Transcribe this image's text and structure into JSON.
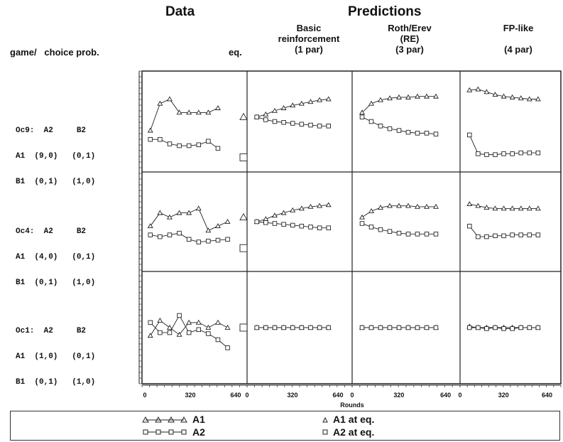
{
  "headers": {
    "data": "Data",
    "predictions": "Predictions",
    "game_choice": "game/   choice prob.",
    "eq": "eq.",
    "basic": [
      "Basic",
      "reinforcement",
      "(1 par)"
    ],
    "rotherev": [
      "Roth/Erev",
      "(RE)",
      "(3 par)"
    ],
    "fplike": [
      "FP-like",
      "",
      "(4 par)"
    ]
  },
  "games": [
    {
      "name_line": "Oc9:  A2     B2",
      "row1": "A1  (9,0)   (0,1)",
      "row2": "B1  (0,1)   (1,0)"
    },
    {
      "name_line": "Oc4:  A2     B2",
      "row1": "A1  (4,0)   (0,1)",
      "row2": "B1  (0,1)   (1,0)"
    },
    {
      "name_line": "Oc1:  A2     B2",
      "row1": "A1  (1,0)   (0,1)",
      "row2": "B1  (0,1)   (1,0)"
    }
  ],
  "legend": {
    "a1": "A1",
    "a2": "A2",
    "a1_eq": "A1 at eq.",
    "a2_eq": "A2 at eq."
  },
  "chart_data": {
    "type": "line",
    "xlabel": "Rounds",
    "xticks": [
      "0",
      "320",
      "640"
    ],
    "xlim": [
      0,
      700
    ],
    "ylim": [
      0,
      1
    ],
    "ylabel": "",
    "panel_columns": [
      "Data",
      "Basic reinforcement (1 par)",
      "Roth/Erev (RE) (3 par)",
      "FP-like (4 par)"
    ],
    "panel_rows": [
      "Oc9",
      "Oc4",
      "Oc1"
    ],
    "equilibrium": [
      {
        "game": "Oc9",
        "A1": 0.55,
        "A2": 0.1
      },
      {
        "game": "Oc4",
        "A1": 0.55,
        "A2": 0.2
      },
      {
        "game": "Oc1",
        "A1": 0.5,
        "A2": 0.5
      }
    ],
    "panels": [
      {
        "row": "Oc9",
        "col": "Data",
        "series": [
          {
            "name": "A1",
            "x": [
              40,
              110,
              180,
              250,
              320,
              390,
              460,
              530
            ],
            "values": [
              0.4,
              0.7,
              0.75,
              0.6,
              0.6,
              0.6,
              0.6,
              0.65
            ]
          },
          {
            "name": "A2",
            "x": [
              40,
              110,
              180,
              250,
              320,
              390,
              460,
              530
            ],
            "values": [
              0.3,
              0.3,
              0.25,
              0.23,
              0.23,
              0.24,
              0.28,
              0.2
            ]
          }
        ]
      },
      {
        "row": "Oc9",
        "col": "Basic reinforcement (1 par)",
        "series": [
          {
            "name": "A1",
            "x": [
              50,
              115,
              180,
              245,
              310,
              375,
              440,
              505,
              570
            ],
            "values": [
              0.55,
              0.58,
              0.62,
              0.65,
              0.68,
              0.7,
              0.72,
              0.74,
              0.75
            ]
          },
          {
            "name": "A2",
            "x": [
              50,
              115,
              180,
              245,
              310,
              375,
              440,
              505,
              570
            ],
            "values": [
              0.55,
              0.52,
              0.5,
              0.49,
              0.48,
              0.47,
              0.46,
              0.45,
              0.45
            ]
          }
        ]
      },
      {
        "row": "Oc9",
        "col": "Roth/Erev (RE) (3 par)",
        "series": [
          {
            "name": "A1",
            "x": [
              50,
              115,
              180,
              245,
              310,
              375,
              440,
              505,
              570
            ],
            "values": [
              0.6,
              0.7,
              0.74,
              0.76,
              0.77,
              0.77,
              0.78,
              0.78,
              0.78
            ]
          },
          {
            "name": "A2",
            "x": [
              50,
              115,
              180,
              245,
              310,
              375,
              440,
              505,
              570
            ],
            "values": [
              0.55,
              0.5,
              0.45,
              0.42,
              0.4,
              0.38,
              0.37,
              0.37,
              0.36
            ]
          }
        ]
      },
      {
        "row": "Oc9",
        "col": "FP-like (4 par)",
        "series": [
          {
            "name": "A1",
            "x": [
              50,
              115,
              180,
              245,
              310,
              375,
              440,
              505,
              570
            ],
            "values": [
              0.85,
              0.86,
              0.83,
              0.8,
              0.78,
              0.77,
              0.76,
              0.75,
              0.75
            ]
          },
          {
            "name": "A2",
            "x": [
              50,
              115,
              180,
              245,
              310,
              375,
              440,
              505,
              570
            ],
            "values": [
              0.35,
              0.14,
              0.13,
              0.13,
              0.14,
              0.14,
              0.15,
              0.15,
              0.15
            ]
          }
        ]
      },
      {
        "row": "Oc4",
        "col": "Data",
        "series": [
          {
            "name": "A1",
            "x": [
              40,
              110,
              180,
              250,
              320,
              390,
              460,
              530,
              600
            ],
            "values": [
              0.45,
              0.6,
              0.55,
              0.6,
              0.6,
              0.65,
              0.4,
              0.45,
              0.5
            ]
          },
          {
            "name": "A2",
            "x": [
              40,
              110,
              180,
              250,
              320,
              390,
              460,
              530,
              600
            ],
            "values": [
              0.35,
              0.33,
              0.35,
              0.37,
              0.3,
              0.27,
              0.28,
              0.29,
              0.3
            ]
          }
        ]
      },
      {
        "row": "Oc4",
        "col": "Basic reinforcement (1 par)",
        "series": [
          {
            "name": "A1",
            "x": [
              50,
              115,
              180,
              245,
              310,
              375,
              440,
              505,
              570
            ],
            "values": [
              0.5,
              0.53,
              0.57,
              0.6,
              0.63,
              0.65,
              0.67,
              0.68,
              0.69
            ]
          },
          {
            "name": "A2",
            "x": [
              50,
              115,
              180,
              245,
              310,
              375,
              440,
              505,
              570
            ],
            "values": [
              0.5,
              0.49,
              0.48,
              0.47,
              0.46,
              0.45,
              0.44,
              0.43,
              0.43
            ]
          }
        ]
      },
      {
        "row": "Oc4",
        "col": "Roth/Erev (RE) (3 par)",
        "series": [
          {
            "name": "A1",
            "x": [
              50,
              115,
              180,
              245,
              310,
              375,
              440,
              505,
              570
            ],
            "values": [
              0.55,
              0.62,
              0.66,
              0.68,
              0.68,
              0.68,
              0.67,
              0.67,
              0.67
            ]
          },
          {
            "name": "A2",
            "x": [
              50,
              115,
              180,
              245,
              310,
              375,
              440,
              505,
              570
            ],
            "values": [
              0.48,
              0.44,
              0.41,
              0.39,
              0.37,
              0.36,
              0.36,
              0.36,
              0.36
            ]
          }
        ]
      },
      {
        "row": "Oc4",
        "col": "FP-like (4 par)",
        "series": [
          {
            "name": "A1",
            "x": [
              50,
              115,
              180,
              245,
              310,
              375,
              440,
              505,
              570
            ],
            "values": [
              0.7,
              0.68,
              0.66,
              0.65,
              0.65,
              0.65,
              0.65,
              0.65,
              0.65
            ]
          },
          {
            "name": "A2",
            "x": [
              50,
              115,
              180,
              245,
              310,
              375,
              440,
              505,
              570
            ],
            "values": [
              0.45,
              0.33,
              0.33,
              0.34,
              0.34,
              0.35,
              0.35,
              0.35,
              0.35
            ]
          }
        ]
      },
      {
        "row": "Oc1",
        "col": "Data",
        "series": [
          {
            "name": "A1",
            "x": [
              40,
              110,
              180,
              250,
              320,
              390,
              460,
              530,
              600
            ],
            "values": [
              0.42,
              0.57,
              0.5,
              0.43,
              0.55,
              0.55,
              0.5,
              0.55,
              0.5
            ]
          },
          {
            "name": "A2",
            "x": [
              40,
              110,
              180,
              250,
              320,
              390,
              460,
              530,
              600
            ],
            "values": [
              0.55,
              0.45,
              0.45,
              0.62,
              0.45,
              0.48,
              0.44,
              0.38,
              0.3
            ]
          }
        ]
      },
      {
        "row": "Oc1",
        "col": "Basic reinforcement (1 par)",
        "series": [
          {
            "name": "A1",
            "x": [
              50,
              115,
              180,
              245,
              310,
              375,
              440,
              505,
              570
            ],
            "values": [
              0.5,
              0.5,
              0.5,
              0.5,
              0.5,
              0.5,
              0.5,
              0.5,
              0.5
            ]
          },
          {
            "name": "A2",
            "x": [
              50,
              115,
              180,
              245,
              310,
              375,
              440,
              505,
              570
            ],
            "values": [
              0.5,
              0.5,
              0.5,
              0.5,
              0.5,
              0.5,
              0.5,
              0.5,
              0.5
            ]
          }
        ]
      },
      {
        "row": "Oc1",
        "col": "Roth/Erev (RE) (3 par)",
        "series": [
          {
            "name": "A1",
            "x": [
              50,
              115,
              180,
              245,
              310,
              375,
              440,
              505,
              570
            ],
            "values": [
              0.5,
              0.5,
              0.5,
              0.5,
              0.5,
              0.5,
              0.5,
              0.5,
              0.5
            ]
          },
          {
            "name": "A2",
            "x": [
              50,
              115,
              180,
              245,
              310,
              375,
              440,
              505,
              570
            ],
            "values": [
              0.5,
              0.5,
              0.5,
              0.5,
              0.5,
              0.5,
              0.5,
              0.5,
              0.5
            ]
          }
        ]
      },
      {
        "row": "Oc1",
        "col": "FP-like (4 par)",
        "series": [
          {
            "name": "A1",
            "x": [
              50,
              115,
              180,
              245,
              310,
              375,
              440,
              505,
              570
            ],
            "values": [
              0.51,
              0.5,
              0.5,
              0.5,
              0.5,
              0.5,
              0.5,
              0.5,
              0.5
            ]
          },
          {
            "name": "A2",
            "x": [
              50,
              115,
              180,
              245,
              310,
              375,
              440,
              505,
              570
            ],
            "values": [
              0.5,
              0.5,
              0.49,
              0.5,
              0.49,
              0.49,
              0.5,
              0.5,
              0.5
            ]
          }
        ]
      }
    ]
  }
}
